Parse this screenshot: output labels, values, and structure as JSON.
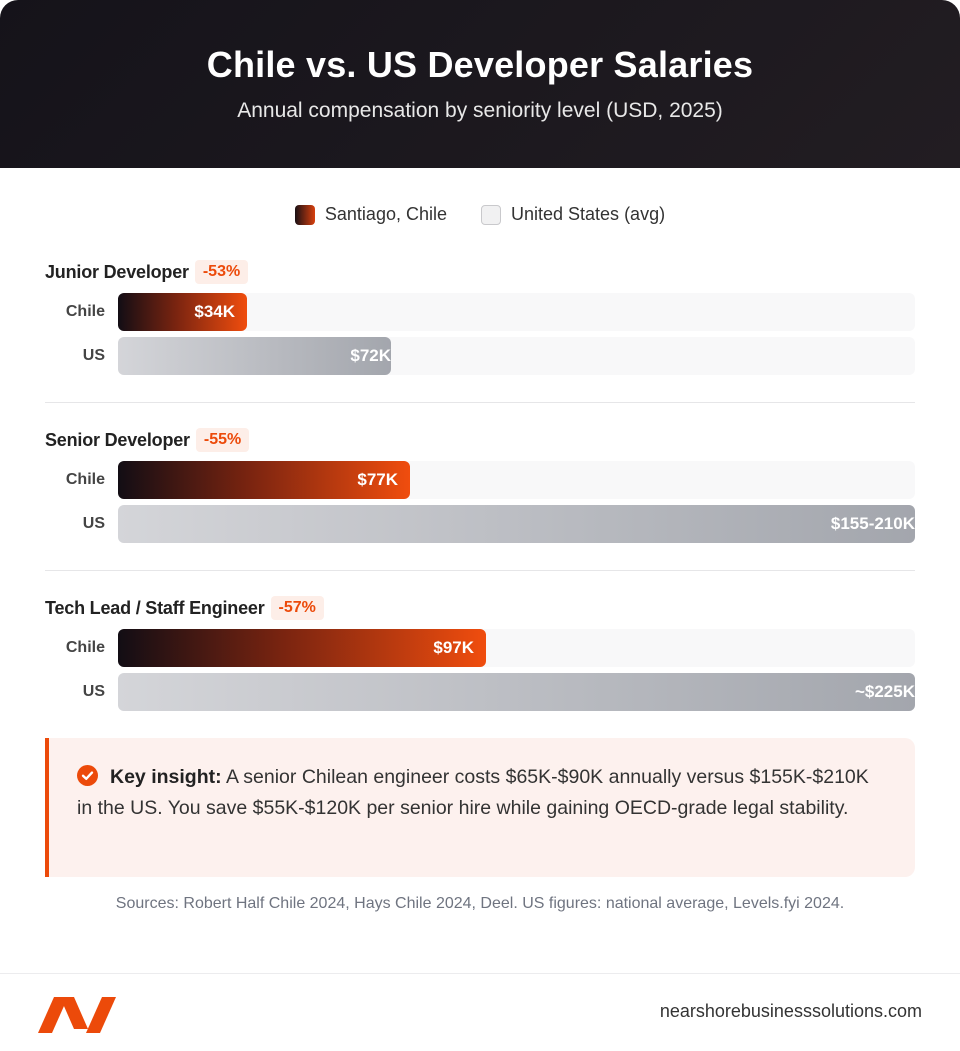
{
  "header": {
    "title": "Chile vs. US Developer Salaries",
    "subtitle": "Annual compensation by seniority level (USD, 2025)"
  },
  "legend": {
    "chile": "Santiago, Chile",
    "us": "United States (avg)"
  },
  "colors": {
    "accent": "#ec4a0a",
    "chile_gradient_start": "#120d14",
    "chile_gradient_end": "#f04d0e",
    "us_bar": "#a3a6ad",
    "header_bg": "#15131a"
  },
  "chart_data": {
    "type": "bar",
    "orientation": "horizontal",
    "scale_max": 210,
    "groups": [
      {
        "label": "Junior Developer",
        "badge": "-53%",
        "rows": [
          {
            "label": "Chile",
            "series": "chile",
            "value": 34,
            "display": "$34K"
          },
          {
            "label": "US",
            "series": "us",
            "value": 72,
            "display": "$72K"
          }
        ]
      },
      {
        "label": "Senior Developer",
        "badge": "-55%",
        "rows": [
          {
            "label": "Chile",
            "series": "chile",
            "value": 77,
            "display": "$77K"
          },
          {
            "label": "US",
            "series": "us",
            "value": 210,
            "display": "$155-210K"
          }
        ]
      },
      {
        "label": "Tech Lead / Staff Engineer",
        "badge": "-57%",
        "rows": [
          {
            "label": "Chile",
            "series": "chile",
            "value": 97,
            "display": "$97K"
          },
          {
            "label": "US",
            "series": "us",
            "value": 225,
            "display": "~$225K"
          }
        ]
      }
    ]
  },
  "insight": {
    "label": "Key insight:",
    "text": "A senior Chilean engineer costs $65K-$90K annually versus $155K-$210K in the US. You save $55K-$120K per senior hire while gaining OECD-grade legal stability."
  },
  "sources": "Sources: Robert Half Chile 2024, Hays Chile 2024, Deel. US figures: national average, Levels.fyi 2024.",
  "footer": {
    "site": "nearshorebusinesssolutions.com",
    "logo_icon": "brand-logo-icon"
  }
}
